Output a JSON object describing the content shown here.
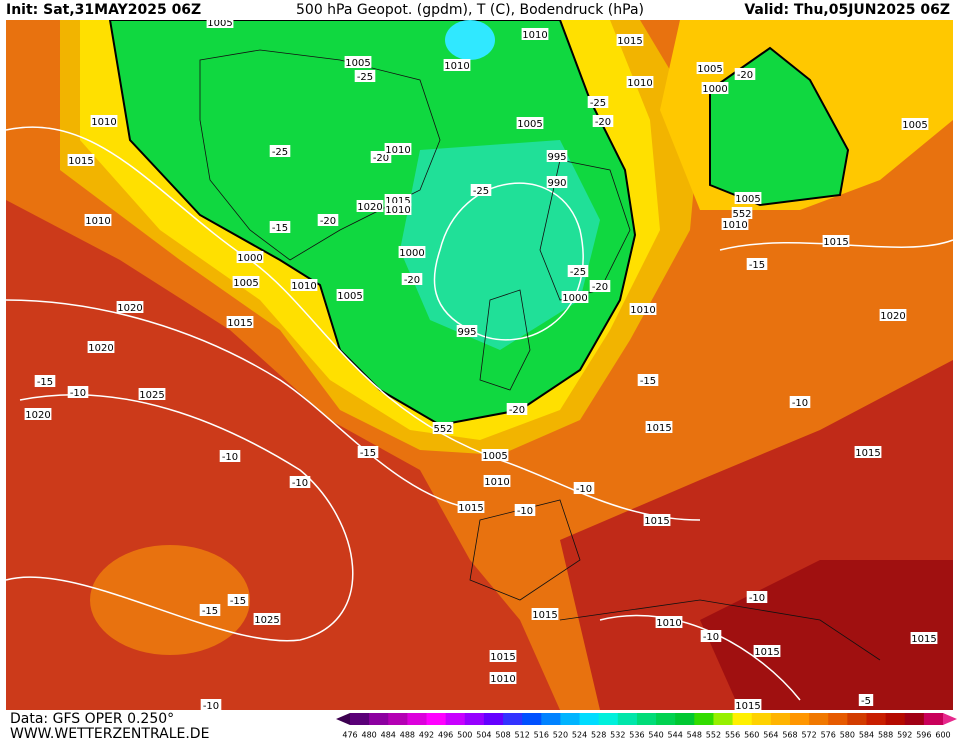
{
  "header": {
    "init": "Init: Sat,31MAY2025 06Z",
    "title": "500 hPa Geopot. (gpdm), T (C), Bodendruck (hPa)",
    "valid": "Valid: Thu,05JUN2025 06Z"
  },
  "footer": {
    "data": "Data: GFS OPER 0.250°",
    "site": "WWW.WETTERZENTRALE.DE"
  },
  "colorbar": {
    "ticks": [
      476,
      480,
      484,
      488,
      492,
      496,
      500,
      504,
      508,
      512,
      516,
      520,
      524,
      528,
      532,
      536,
      540,
      544,
      548,
      552,
      556,
      560,
      564,
      568,
      572,
      576,
      580,
      584,
      588,
      592,
      596,
      600
    ],
    "colors": [
      "#3c0050",
      "#5a0078",
      "#8c00a0",
      "#b400b4",
      "#dc00dc",
      "#ff00ff",
      "#c800ff",
      "#9600ff",
      "#6400ff",
      "#3232ff",
      "#0050ff",
      "#0082ff",
      "#00b4ff",
      "#00dcff",
      "#00f0dc",
      "#00e6aa",
      "#00dc78",
      "#00d250",
      "#00c832",
      "#32dc00",
      "#96f000",
      "#fff000",
      "#ffd200",
      "#ffb400",
      "#ff9600",
      "#f07800",
      "#e65a00",
      "#d23c00",
      "#c81e00",
      "#b40a00",
      "#a00014",
      "#c8005a",
      "#e6288c"
    ]
  },
  "map": {
    "labels": [
      "1005",
      "1010",
      "1015",
      "1005",
      "-25",
      "1010",
      "1010",
      "1005",
      "-20",
      "1000",
      "-25",
      "-20",
      "1005",
      "1010",
      "1005",
      "1015",
      "-25",
      "-20",
      "1010",
      "995",
      "990",
      "-25",
      "1015",
      "1020",
      "1010",
      "-20",
      "-15",
      "1010",
      "1005",
      "1010",
      "1015",
      "1000",
      "1000",
      "-20",
      "-15",
      "-25",
      "-20",
      "1005",
      "1010",
      "1005",
      "1000",
      "1020",
      "1010",
      "1015",
      "1020",
      "995",
      "1020",
      "-15",
      "-10",
      "1025",
      "-15",
      "-10",
      "1020",
      "-20",
      "552",
      "1015",
      "-15",
      "1015",
      "-10",
      "1005",
      "1010",
      "-10",
      "-10",
      "1015",
      "-10",
      "1015",
      "-15",
      "-15",
      "1025",
      "1015",
      "-10",
      "1010",
      "-10",
      "1015",
      "1015",
      "1015",
      "1010",
      "-10",
      "-5",
      "1015",
      "552"
    ]
  }
}
